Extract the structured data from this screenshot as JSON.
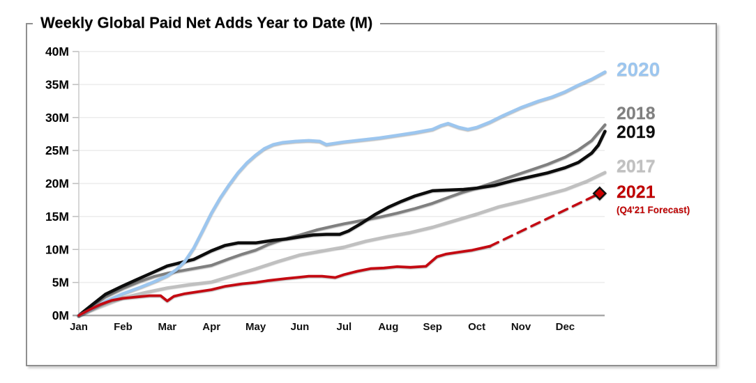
{
  "chart_data": {
    "type": "line",
    "title": "Weekly Global Paid Net Adds Year to Date (M)",
    "xlabel": "",
    "ylabel": "",
    "ylim": [
      0,
      40
    ],
    "y_tick_values": [
      0,
      5,
      10,
      15,
      20,
      25,
      30,
      35,
      40
    ],
    "y_tick_labels": [
      "0M",
      "5M",
      "10M",
      "15M",
      "20M",
      "25M",
      "30M",
      "35M",
      "40M"
    ],
    "x_tick_labels": [
      "Jan",
      "Feb",
      "Mar",
      "Apr",
      "May",
      "Jun",
      "Jul",
      "Aug",
      "Sep",
      "Oct",
      "Nov",
      "Dec"
    ],
    "x_domain_months": [
      0,
      12
    ],
    "grid": "horizontal",
    "legend_position": "right-outside",
    "series": [
      {
        "name": "2017",
        "color": "#C0C0C0",
        "style": "solid",
        "points": [
          [
            0,
            0
          ],
          [
            0.5,
            1.4
          ],
          [
            1.0,
            2.7
          ],
          [
            1.5,
            3.5
          ],
          [
            2.0,
            4.2
          ],
          [
            2.5,
            4.7
          ],
          [
            3.0,
            5.1
          ],
          [
            3.5,
            6.1
          ],
          [
            4.0,
            7.1
          ],
          [
            4.5,
            8.2
          ],
          [
            5.0,
            9.2
          ],
          [
            5.5,
            9.8
          ],
          [
            6.0,
            10.4
          ],
          [
            6.5,
            11.3
          ],
          [
            7.0,
            12.0
          ],
          [
            7.5,
            12.6
          ],
          [
            8.0,
            13.4
          ],
          [
            8.5,
            14.4
          ],
          [
            9.0,
            15.4
          ],
          [
            9.5,
            16.5
          ],
          [
            10.0,
            17.3
          ],
          [
            10.5,
            18.2
          ],
          [
            11.0,
            19.1
          ],
          [
            11.5,
            20.4
          ],
          [
            11.9,
            21.7
          ]
        ]
      },
      {
        "name": "2018",
        "color": "#7F7F7F",
        "style": "solid",
        "points": [
          [
            0,
            0
          ],
          [
            0.3,
            1.4
          ],
          [
            0.6,
            2.8
          ],
          [
            1.0,
            4.1
          ],
          [
            1.4,
            5.2
          ],
          [
            1.7,
            5.9
          ],
          [
            2.0,
            6.4
          ],
          [
            2.5,
            7.0
          ],
          [
            3.0,
            7.6
          ],
          [
            3.4,
            8.6
          ],
          [
            3.7,
            9.3
          ],
          [
            4.0,
            9.9
          ],
          [
            4.3,
            10.8
          ],
          [
            4.6,
            11.5
          ],
          [
            5.0,
            12.2
          ],
          [
            5.4,
            13.0
          ],
          [
            5.8,
            13.6
          ],
          [
            6.0,
            13.9
          ],
          [
            6.4,
            14.4
          ],
          [
            6.8,
            14.9
          ],
          [
            7.2,
            15.5
          ],
          [
            7.6,
            16.2
          ],
          [
            8.0,
            17.0
          ],
          [
            8.4,
            18.0
          ],
          [
            8.7,
            18.7
          ],
          [
            9.0,
            19.3
          ],
          [
            9.4,
            20.2
          ],
          [
            9.8,
            21.1
          ],
          [
            10.2,
            22.0
          ],
          [
            10.6,
            22.9
          ],
          [
            11.0,
            24.0
          ],
          [
            11.3,
            25.1
          ],
          [
            11.6,
            26.5
          ],
          [
            11.9,
            28.9
          ]
        ]
      },
      {
        "name": "2019",
        "color": "#0d0d0d",
        "style": "solid",
        "points": [
          [
            0,
            0
          ],
          [
            0.3,
            1.6
          ],
          [
            0.6,
            3.2
          ],
          [
            1.0,
            4.5
          ],
          [
            1.3,
            5.4
          ],
          [
            1.7,
            6.6
          ],
          [
            2.0,
            7.5
          ],
          [
            2.3,
            8.0
          ],
          [
            2.6,
            8.5
          ],
          [
            3.0,
            9.8
          ],
          [
            3.3,
            10.6
          ],
          [
            3.6,
            11.0
          ],
          [
            4.0,
            11.0
          ],
          [
            4.4,
            11.4
          ],
          [
            4.7,
            11.6
          ],
          [
            5.0,
            11.9
          ],
          [
            5.3,
            12.2
          ],
          [
            5.6,
            12.3
          ],
          [
            5.9,
            12.3
          ],
          [
            6.1,
            12.8
          ],
          [
            6.4,
            14.0
          ],
          [
            6.7,
            15.3
          ],
          [
            7.0,
            16.4
          ],
          [
            7.3,
            17.3
          ],
          [
            7.6,
            18.1
          ],
          [
            8.0,
            18.9
          ],
          [
            8.3,
            19.0
          ],
          [
            8.7,
            19.1
          ],
          [
            9.0,
            19.3
          ],
          [
            9.4,
            19.7
          ],
          [
            9.8,
            20.4
          ],
          [
            10.2,
            21.0
          ],
          [
            10.6,
            21.6
          ],
          [
            11.0,
            22.4
          ],
          [
            11.3,
            23.2
          ],
          [
            11.6,
            24.6
          ],
          [
            11.75,
            25.8
          ],
          [
            11.9,
            27.9
          ]
        ]
      },
      {
        "name": "2020",
        "color": "#9CC6EF",
        "style": "solid",
        "points": [
          [
            0,
            0
          ],
          [
            0.3,
            1.0
          ],
          [
            0.6,
            2.1
          ],
          [
            1.0,
            3.3
          ],
          [
            1.4,
            4.3
          ],
          [
            1.7,
            5.1
          ],
          [
            2.0,
            6.0
          ],
          [
            2.2,
            6.9
          ],
          [
            2.4,
            8.2
          ],
          [
            2.6,
            10.2
          ],
          [
            2.8,
            12.8
          ],
          [
            3.0,
            15.5
          ],
          [
            3.2,
            17.8
          ],
          [
            3.4,
            19.8
          ],
          [
            3.6,
            21.6
          ],
          [
            3.8,
            23.1
          ],
          [
            4.0,
            24.3
          ],
          [
            4.2,
            25.3
          ],
          [
            4.4,
            25.9
          ],
          [
            4.6,
            26.2
          ],
          [
            4.9,
            26.4
          ],
          [
            5.2,
            26.5
          ],
          [
            5.45,
            26.4
          ],
          [
            5.6,
            25.9
          ],
          [
            5.8,
            26.1
          ],
          [
            6.0,
            26.3
          ],
          [
            6.4,
            26.6
          ],
          [
            6.8,
            26.9
          ],
          [
            7.2,
            27.3
          ],
          [
            7.6,
            27.7
          ],
          [
            8.0,
            28.2
          ],
          [
            8.2,
            28.8
          ],
          [
            8.35,
            29.1
          ],
          [
            8.6,
            28.5
          ],
          [
            8.8,
            28.2
          ],
          [
            9.0,
            28.5
          ],
          [
            9.3,
            29.3
          ],
          [
            9.6,
            30.3
          ],
          [
            10.0,
            31.5
          ],
          [
            10.4,
            32.5
          ],
          [
            10.7,
            33.1
          ],
          [
            11.0,
            33.9
          ],
          [
            11.3,
            34.9
          ],
          [
            11.6,
            35.8
          ],
          [
            11.9,
            36.9
          ]
        ]
      },
      {
        "name": "2021",
        "color": "#C40A12",
        "style": "solid-then-forecast-dash",
        "points": [
          [
            0,
            0
          ],
          [
            0.25,
            0.9
          ],
          [
            0.5,
            1.7
          ],
          [
            0.75,
            2.3
          ],
          [
            1.0,
            2.6
          ],
          [
            1.3,
            2.8
          ],
          [
            1.6,
            3.0
          ],
          [
            1.85,
            3.0
          ],
          [
            2.0,
            2.2
          ],
          [
            2.15,
            2.9
          ],
          [
            2.4,
            3.3
          ],
          [
            2.7,
            3.6
          ],
          [
            3.0,
            3.9
          ],
          [
            3.3,
            4.4
          ],
          [
            3.7,
            4.8
          ],
          [
            4.0,
            5.0
          ],
          [
            4.3,
            5.3
          ],
          [
            4.7,
            5.6
          ],
          [
            5.0,
            5.8
          ],
          [
            5.2,
            5.95
          ],
          [
            5.5,
            5.95
          ],
          [
            5.8,
            5.75
          ],
          [
            6.0,
            6.2
          ],
          [
            6.3,
            6.7
          ],
          [
            6.6,
            7.1
          ],
          [
            6.9,
            7.2
          ],
          [
            7.2,
            7.4
          ],
          [
            7.5,
            7.3
          ],
          [
            7.85,
            7.45
          ],
          [
            8.1,
            8.9
          ],
          [
            8.3,
            9.3
          ],
          [
            8.6,
            9.6
          ],
          [
            8.9,
            9.9
          ],
          [
            9.1,
            10.2
          ],
          [
            9.3,
            10.5
          ]
        ],
        "forecast_points": [
          [
            9.3,
            10.5
          ],
          [
            11.78,
            18.5
          ]
        ],
        "marker": {
          "shape": "diamond",
          "x": 11.78,
          "y": 18.5,
          "fill": "#CC0000",
          "stroke": "#111111"
        }
      }
    ],
    "legend": [
      {
        "label": "2020",
        "color": "#9CC6EF"
      },
      {
        "label": "2018",
        "color": "#7F7F7F"
      },
      {
        "label": "2019",
        "color": "#0d0d0d"
      },
      {
        "label": "2017",
        "color": "#C0C0C0"
      },
      {
        "label": "2021",
        "color": "#C00000",
        "note": "(Q4'21 Forecast)"
      }
    ],
    "annotations": {
      "forecast_note": "(Q4'21 Forecast)"
    }
  },
  "colors": {
    "grid": "#ececec",
    "axis": "#a9a9a9",
    "y_axis_line": "#c8c8c8",
    "tick": "#bdbdbd",
    "frame_border": "#8f8f8f",
    "text": "#000000"
  }
}
